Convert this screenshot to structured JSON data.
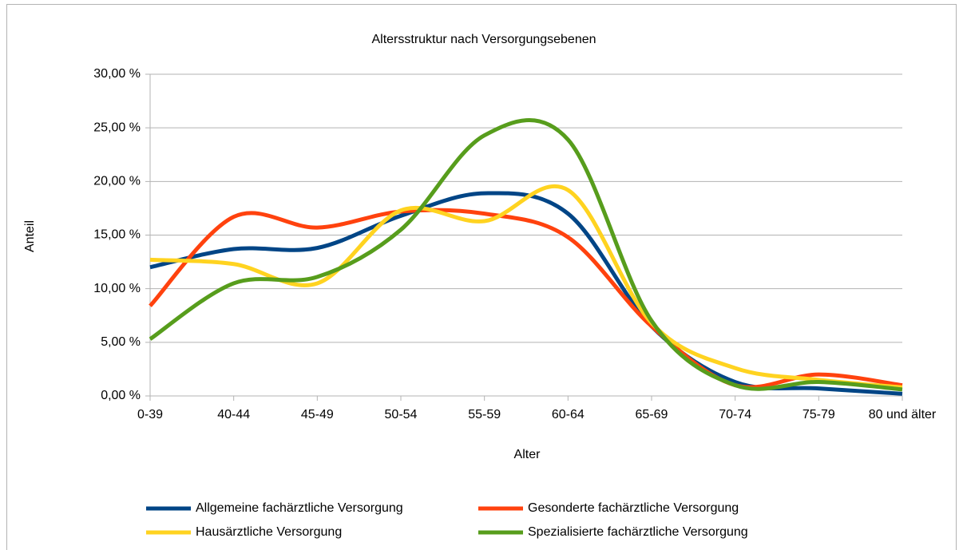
{
  "chart_data": {
    "type": "line",
    "title": "Altersstruktur nach Versorgungsebenen",
    "x_label": "Alter",
    "y_label": "Anteil",
    "smooth": true,
    "grid": true,
    "legend": "bottom",
    "categories": [
      "0-39",
      "40-44",
      "45-49",
      "50-54",
      "55-59",
      "60-64",
      "65-69",
      "70-74",
      "75-79",
      "80 und älter"
    ],
    "ylim": [
      0,
      30
    ],
    "yticks": [
      {
        "value": 0,
        "label": "0,00 %"
      },
      {
        "value": 5,
        "label": "5,00 %"
      },
      {
        "value": 10,
        "label": "10,00 %"
      },
      {
        "value": 15,
        "label": "15,00 %"
      },
      {
        "value": 20,
        "label": "20,00 %"
      },
      {
        "value": 25,
        "label": "25,00 %"
      },
      {
        "value": 30,
        "label": "30,00 %"
      }
    ],
    "series": [
      {
        "name": "Allgemeine fachärztliche Versorgung",
        "color": "#004586",
        "values": [
          12.0,
          13.7,
          13.8,
          16.8,
          18.9,
          17.0,
          6.5,
          1.3,
          0.7,
          0.2
        ]
      },
      {
        "name": "Gesonderte fachärztliche Versorgung",
        "color": "#ff420e",
        "values": [
          8.4,
          16.7,
          15.7,
          17.2,
          17.0,
          14.8,
          6.5,
          1.0,
          2.0,
          1.0
        ]
      },
      {
        "name": "Hausärztliche Versorgung",
        "color": "#ffd320",
        "values": [
          12.7,
          12.3,
          10.5,
          17.3,
          16.3,
          19.2,
          6.8,
          2.6,
          1.5,
          0.8
        ]
      },
      {
        "name": "Spezialisierte fachärztliche Versorgung",
        "color": "#579d1c",
        "values": [
          5.3,
          10.5,
          11.1,
          15.5,
          24.3,
          23.9,
          7.0,
          1.0,
          1.3,
          0.6
        ]
      }
    ]
  }
}
